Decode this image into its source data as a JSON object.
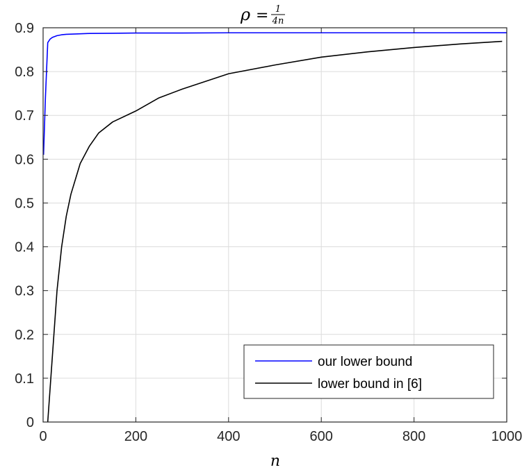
{
  "chart_data": {
    "type": "line",
    "title": {
      "lhs": "ρ",
      "eq": "=",
      "num": "1",
      "den": "4n"
    },
    "xlabel": "n",
    "ylabel": "",
    "xlim": [
      0,
      1000
    ],
    "ylim": [
      0,
      0.9
    ],
    "xticks": [
      0,
      200,
      400,
      600,
      800,
      1000
    ],
    "xtick_labels": [
      "0",
      "200",
      "400",
      "600",
      "800",
      "1000"
    ],
    "yticks": [
      0,
      0.1,
      0.2,
      0.3,
      0.4,
      0.5,
      0.6,
      0.7,
      0.8,
      0.9
    ],
    "ytick_labels": [
      "0",
      "0.1",
      "0.2",
      "0.3",
      "0.4",
      "0.5",
      "0.6",
      "0.7",
      "0.8",
      "0.9"
    ],
    "grid": true,
    "legend_position": "bottom-right",
    "series": [
      {
        "name": "our lower bound",
        "color": "#0000ff",
        "x": [
          1,
          5,
          10,
          15,
          20,
          30,
          40,
          50,
          75,
          100,
          150,
          200,
          300,
          400,
          600,
          800,
          1000
        ],
        "y": [
          0.61,
          0.74,
          0.866,
          0.874,
          0.878,
          0.882,
          0.884,
          0.885,
          0.886,
          0.887,
          0.8875,
          0.888,
          0.888,
          0.8885,
          0.8885,
          0.8885,
          0.8886
        ]
      },
      {
        "name": "lower bound in [6]",
        "color": "#000000",
        "x": [
          10,
          20,
          30,
          40,
          50,
          60,
          80,
          100,
          120,
          150,
          200,
          250,
          300,
          400,
          500,
          600,
          700,
          800,
          900,
          990
        ],
        "y": [
          0.0,
          0.15,
          0.3,
          0.4,
          0.47,
          0.52,
          0.59,
          0.63,
          0.66,
          0.685,
          0.71,
          0.74,
          0.76,
          0.795,
          0.815,
          0.833,
          0.845,
          0.855,
          0.863,
          0.869
        ]
      }
    ]
  }
}
